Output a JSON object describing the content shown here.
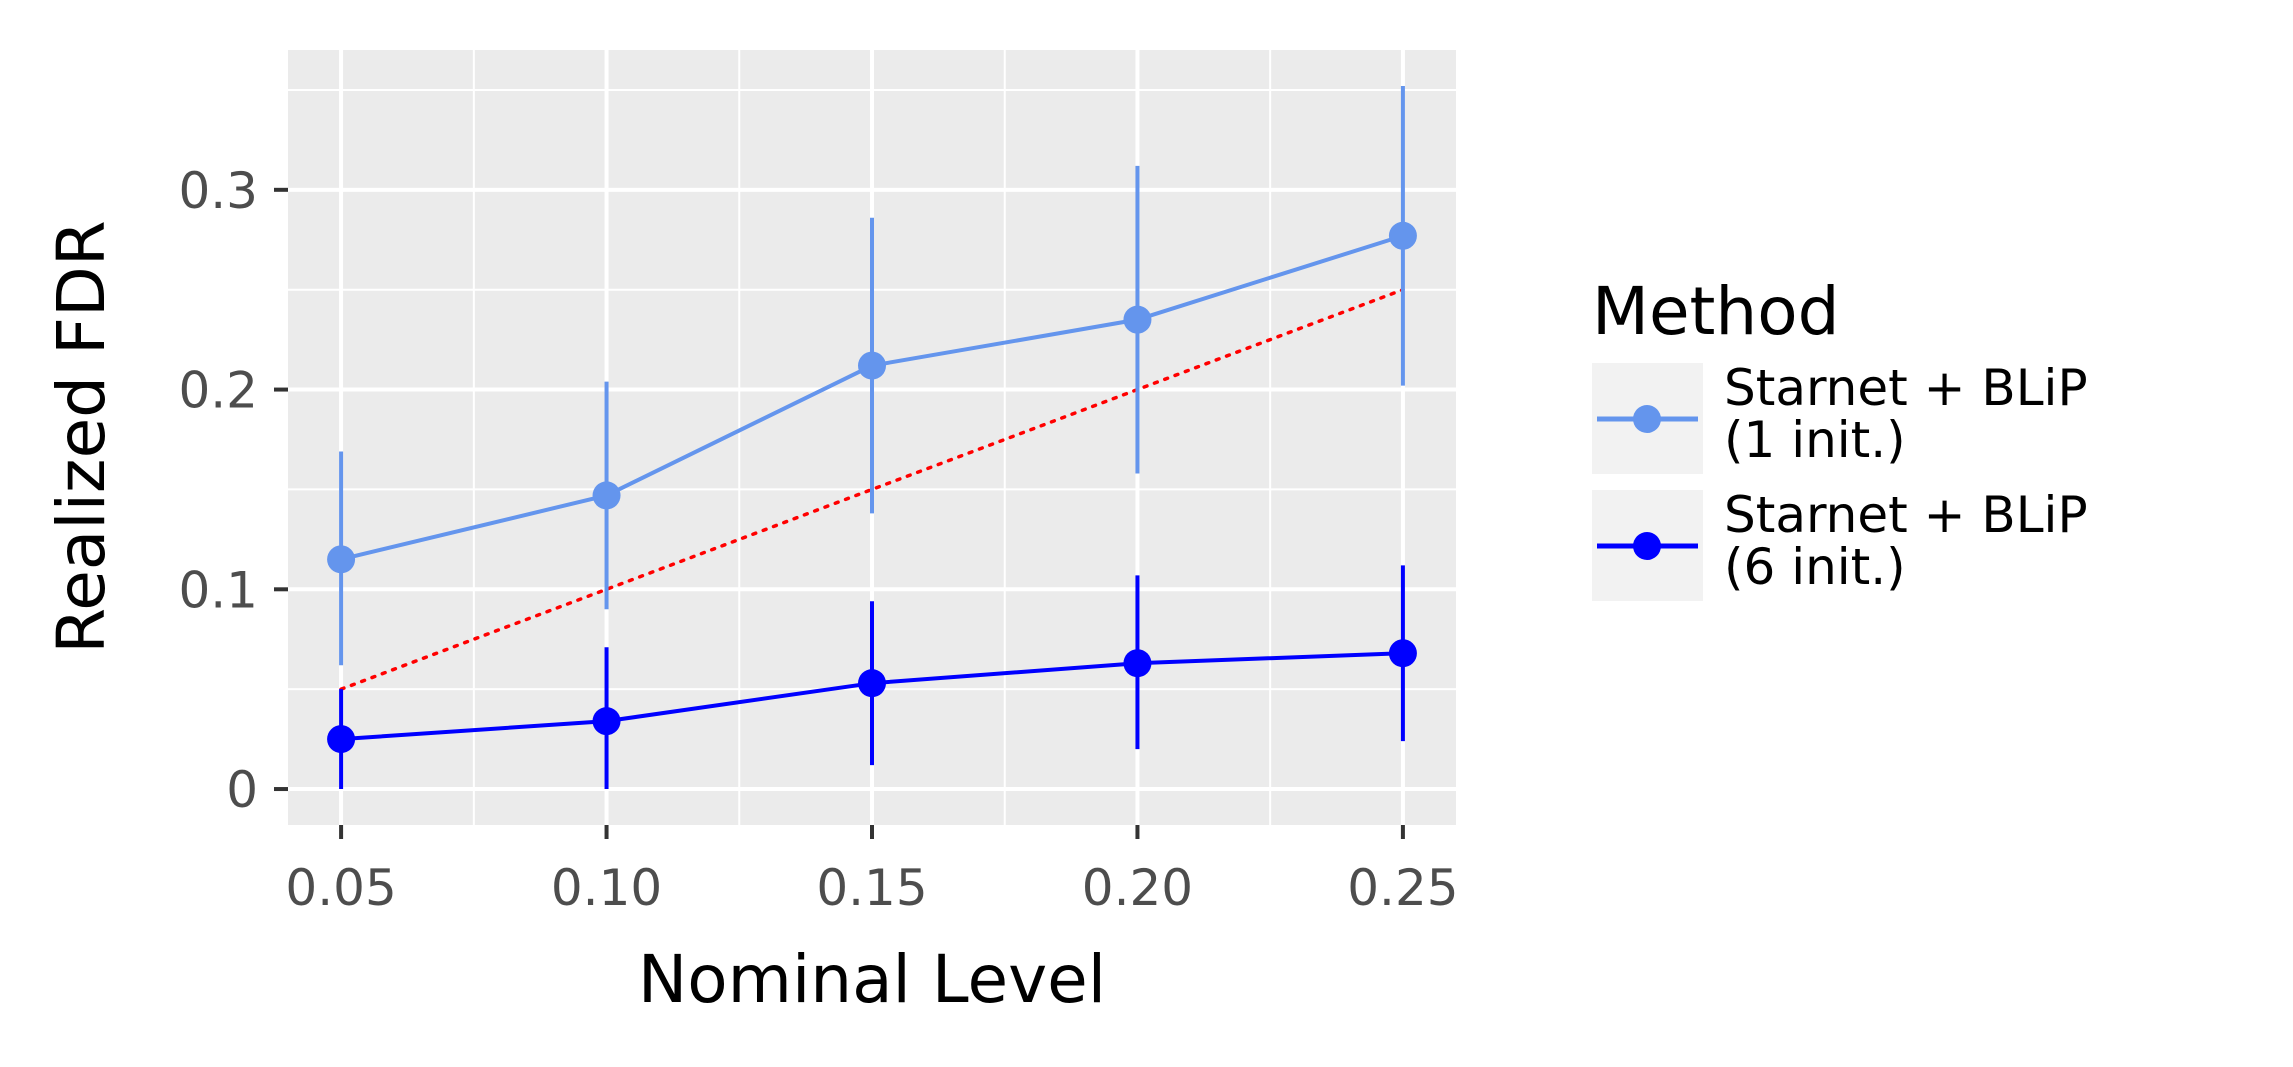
{
  "chart_data": {
    "type": "line",
    "title": "",
    "xlabel": "Nominal Level",
    "ylabel": "Realized FDR",
    "x": [
      0.05,
      0.1,
      0.15,
      0.2,
      0.25
    ],
    "x_tick_labels": [
      "0.05",
      "0.10",
      "0.15",
      "0.20",
      "0.25"
    ],
    "y_ticks": [
      0,
      0.1,
      0.2,
      0.3
    ],
    "y_tick_labels": [
      "0",
      "0.1",
      "0.2",
      "0.3"
    ],
    "xlim": [
      0.04,
      0.26
    ],
    "ylim": [
      -0.018,
      0.37
    ],
    "grid": true,
    "legend_position": "right",
    "legend_title": "Method",
    "reference_line": {
      "x": [
        0.05,
        0.25
      ],
      "y": [
        0.05,
        0.25
      ],
      "style": "dotted",
      "color": "#ff0000"
    },
    "series": [
      {
        "name": "Starnet + BLiP\n(1 init.)",
        "name_lines": [
          "Starnet + BLiP",
          "(1 init.)"
        ],
        "color": "#6495ed",
        "values": [
          0.115,
          0.147,
          0.212,
          0.235,
          0.277
        ],
        "lower": [
          0.062,
          0.09,
          0.138,
          0.158,
          0.202
        ],
        "upper": [
          0.169,
          0.204,
          0.286,
          0.312,
          0.352
        ]
      },
      {
        "name": "Starnet + BLiP\n(6 init.)",
        "name_lines": [
          "Starnet + BLiP",
          "(6 init.)"
        ],
        "color": "#0000ff",
        "values": [
          0.025,
          0.034,
          0.053,
          0.063,
          0.068
        ],
        "lower": [
          0.0,
          0.0,
          0.012,
          0.02,
          0.024
        ],
        "upper": [
          0.05,
          0.071,
          0.094,
          0.107,
          0.112
        ]
      }
    ]
  }
}
